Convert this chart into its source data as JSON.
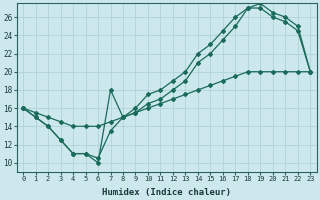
{
  "xlabel": "Humidex (Indice chaleur)",
  "bg_color": "#cce8ec",
  "grid_color": "#aacdd4",
  "line_color": "#1a6b5a",
  "xlim": [
    -0.5,
    23.5
  ],
  "ylim": [
    9,
    27.5
  ],
  "xticks": [
    0,
    1,
    2,
    3,
    4,
    5,
    6,
    7,
    8,
    9,
    10,
    11,
    12,
    13,
    14,
    15,
    16,
    17,
    18,
    19,
    20,
    21,
    22,
    23
  ],
  "yticks": [
    10,
    12,
    14,
    16,
    18,
    20,
    22,
    24,
    26
  ],
  "line1_x": [
    0,
    1,
    2,
    3,
    4,
    5,
    6,
    7,
    8,
    9,
    10,
    11,
    12,
    13,
    14,
    15,
    16,
    17,
    18,
    19,
    20,
    21,
    22,
    23
  ],
  "line1_y": [
    16.0,
    15.0,
    14.0,
    12.5,
    11.0,
    11.0,
    10.0,
    18.0,
    15.0,
    15.5,
    16.5,
    17.0,
    18.0,
    19.0,
    21.0,
    22.0,
    23.5,
    25.0,
    27.0,
    27.0,
    26.0,
    25.5,
    24.5,
    20.0
  ],
  "line2_x": [
    0,
    1,
    2,
    3,
    4,
    5,
    6,
    7,
    8,
    9,
    10,
    11,
    12,
    13,
    14,
    15,
    16,
    17,
    18,
    19,
    20,
    21,
    22,
    23
  ],
  "line2_y": [
    16.0,
    15.0,
    14.0,
    12.5,
    11.0,
    11.0,
    10.5,
    13.5,
    15.0,
    16.0,
    17.5,
    18.0,
    19.0,
    20.0,
    22.0,
    23.0,
    24.5,
    26.0,
    27.0,
    27.5,
    26.5,
    26.0,
    25.0,
    20.0
  ],
  "line3_x": [
    0,
    1,
    2,
    3,
    4,
    5,
    6,
    7,
    8,
    9,
    10,
    11,
    12,
    13,
    14,
    15,
    16,
    17,
    18,
    19,
    20,
    21,
    22,
    23
  ],
  "line3_y": [
    16.0,
    15.5,
    15.0,
    14.5,
    14.0,
    14.0,
    14.0,
    14.5,
    15.0,
    15.5,
    16.0,
    16.5,
    17.0,
    17.5,
    18.0,
    18.5,
    19.0,
    19.5,
    20.0,
    20.0,
    20.0,
    20.0,
    20.0,
    20.0
  ]
}
